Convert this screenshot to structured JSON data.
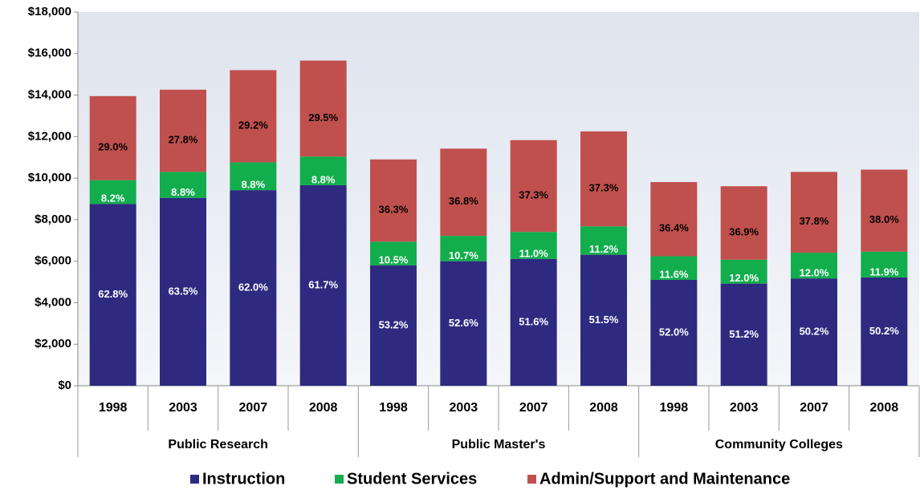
{
  "chart_data": {
    "type": "stacked_bar",
    "categories": [
      "1998",
      "2003",
      "2007",
      "2008",
      "1998",
      "2003",
      "2007",
      "2008",
      "1998",
      "2003",
      "2007",
      "2008"
    ],
    "groups": [
      "Public Research",
      "Public Master's",
      "Community Colleges"
    ],
    "series": [
      {
        "name": "Instruction",
        "color": "#2e2a80",
        "values": [
          8760,
          9050,
          9420,
          9660,
          5800,
          6000,
          6110,
          6310,
          5100,
          4920,
          5170,
          5220
        ],
        "value_labels": [
          "62.8%",
          "63.5%",
          "62.0%",
          "61.7%",
          "53.2%",
          "52.6%",
          "51.6%",
          "51.5%",
          "52.0%",
          "51.2%",
          "50.2%",
          "50.2%"
        ]
      },
      {
        "name": "Student Services",
        "color": "#12ad4c",
        "values": [
          1140,
          1250,
          1340,
          1380,
          1140,
          1220,
          1300,
          1370,
          1140,
          1150,
          1240,
          1240
        ],
        "value_labels": [
          "8.2%",
          "8.8%",
          "8.8%",
          "8.8%",
          "10.5%",
          "10.7%",
          "11.0%",
          "11.2%",
          "11.6%",
          "12.0%",
          "12.0%",
          "11.9%"
        ]
      },
      {
        "name": "Admin/Support and Maintenance",
        "color": "#c0504d",
        "values": [
          4050,
          3960,
          4440,
          4620,
          3960,
          4200,
          4420,
          4570,
          3570,
          3540,
          3890,
          3950
        ],
        "value_labels": [
          "29.0%",
          "27.8%",
          "29.2%",
          "29.5%",
          "36.3%",
          "36.8%",
          "37.3%",
          "37.3%",
          "36.4%",
          "36.9%",
          "37.8%",
          "38.0%"
        ]
      }
    ],
    "ylim": [
      0,
      18000
    ],
    "yticks": [
      {
        "value": 0,
        "label": "$0"
      },
      {
        "value": 2000,
        "label": "$2,000"
      },
      {
        "value": 4000,
        "label": "$4,000"
      },
      {
        "value": 6000,
        "label": "$6,000"
      },
      {
        "value": 8000,
        "label": "$8,000"
      },
      {
        "value": 10000,
        "label": "$10,000"
      },
      {
        "value": 12000,
        "label": "$12,000"
      },
      {
        "value": 14000,
        "label": "$14,000"
      },
      {
        "value": 16000,
        "label": "$16,000"
      },
      {
        "value": 18000,
        "label": "$18,000"
      }
    ],
    "grid": false,
    "legend": "bottom"
  }
}
